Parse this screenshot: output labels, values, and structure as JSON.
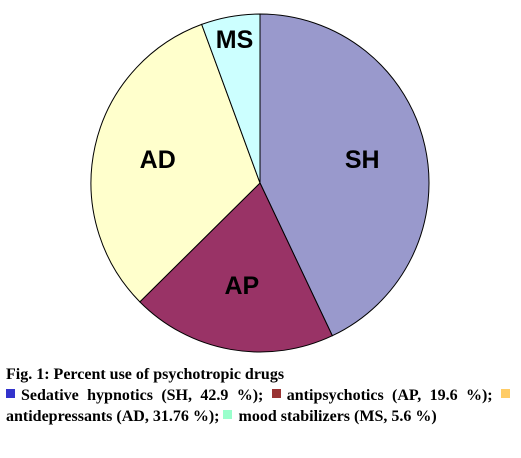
{
  "chart_data": {
    "type": "pie",
    "title": "Fig. 1: Percent use of psychotropic drugs",
    "slices": [
      {
        "label": "SH",
        "value": 42.9,
        "color": "#9999cc",
        "legend_color": "#3333cc"
      },
      {
        "label": "AP",
        "value": 19.6,
        "color": "#993366",
        "legend_color": "#993333"
      },
      {
        "label": "AD",
        "value": 31.76,
        "color": "#ffffcc",
        "legend_color": "#ffcc66"
      },
      {
        "label": "MS",
        "value": 5.6,
        "color": "#ccffff",
        "legend_color": "#99ffcc"
      }
    ],
    "legend": [
      {
        "text": "Sedative hypnotics (SH, 42.9 %);",
        "color": "#3333cc"
      },
      {
        "text": "antipsychotics (AP, 19.6 %);",
        "color": "#993333"
      },
      {
        "text": "antidepressants (AD, 31.76 %);",
        "color": "#ffcc66"
      },
      {
        "text": "mood stabilizers (MS, 5.6 %)",
        "color": "#99ffcc"
      }
    ],
    "start_angle_deg": 0,
    "direction": "clockwise",
    "label_position": "inside"
  }
}
